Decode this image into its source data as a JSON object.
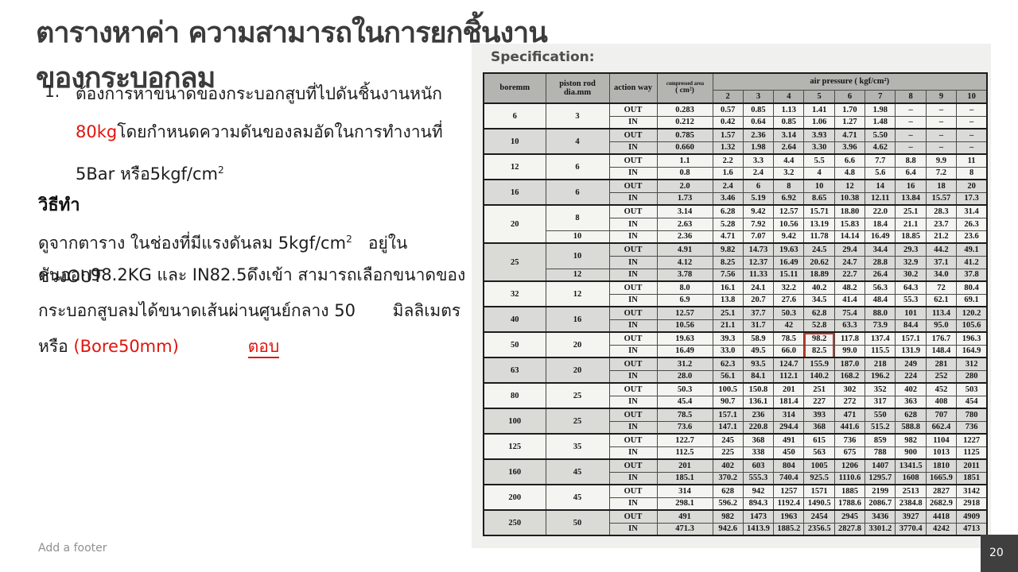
{
  "title": "ตารางหาค่า ความสามารถในการยกชิ้นงาน ของกระบอกลม",
  "problem": {
    "number": "1.",
    "lines": [
      [
        {
          "t": "ต้องการหาขนาดของกระบอกสูบที่ไปดันชิ้นงานหนัก"
        }
      ],
      [
        {
          "t": "80kg",
          "c": "red"
        },
        {
          "t": "โดยกำหนดความดันของลมอัดในการทำงานที่"
        }
      ],
      [
        {
          "t": "5Bar หรือ5kgf/cm"
        },
        {
          "t": "2",
          "sup": true
        }
      ]
    ]
  },
  "method": {
    "heading": "วิธีทำ",
    "lines": [
      [
        {
          "t": "ดูจากตาราง ในช่องที่มีแรงดันลม 5kgf/cm"
        },
        {
          "t": "2",
          "sup": true
        },
        {
          "t": "   อยู่ในช่วงOUT"
        }
      ],
      [
        {
          "t": "ดันออก98.2KG และ IN82.5ดึงเข้า สามารถเลือกขนาดของ"
        }
      ],
      [
        {
          "t": "กระบอกสูบลมได้ขนาดเส้นผ่านศูนย์กลาง 50       มิลลิเมตร"
        }
      ],
      [
        {
          "t": "หรือ "
        },
        {
          "t": "(Bore50mm)",
          "c": "red"
        },
        {
          "t": "             "
        },
        {
          "t": "ตอบ",
          "c": "red",
          "u": true
        }
      ]
    ]
  },
  "spec": {
    "title": "Specification:"
  },
  "table": {
    "headers": {
      "bore": "boremm",
      "rod": "piston rod dia.mm",
      "action": "action way",
      "area_line1": "compressed area",
      "area_line2": "( cm²)",
      "pressure": "air pressure ( kgf/cm²)",
      "pressure_cols": [
        "2",
        "3",
        "4",
        "5",
        "6",
        "7",
        "8",
        "9",
        "10"
      ]
    },
    "highlight_col": 3,
    "groups": [
      {
        "bore": "6",
        "shaded": false,
        "rows": [
          {
            "rod": "3",
            "rodspan": 2,
            "action": "OUT",
            "area": "0.283",
            "values": [
              "0.57",
              "0.85",
              "1.13",
              "1.41",
              "1.70",
              "1.98",
              "–",
              "–",
              "–"
            ]
          },
          {
            "action": "IN",
            "area": "0.212",
            "values": [
              "0.42",
              "0.64",
              "0.85",
              "1.06",
              "1.27",
              "1.48",
              "–",
              "–",
              "–"
            ]
          }
        ]
      },
      {
        "bore": "10",
        "shaded": true,
        "rows": [
          {
            "rod": "4",
            "rodspan": 2,
            "action": "OUT",
            "area": "0.785",
            "values": [
              "1.57",
              "2.36",
              "3.14",
              "3.93",
              "4.71",
              "5.50",
              "–",
              "–",
              "–"
            ]
          },
          {
            "action": "IN",
            "area": "0.660",
            "values": [
              "1.32",
              "1.98",
              "2.64",
              "3.30",
              "3.96",
              "4.62",
              "–",
              "–",
              "–"
            ]
          }
        ]
      },
      {
        "bore": "12",
        "shaded": false,
        "rows": [
          {
            "rod": "6",
            "rodspan": 2,
            "action": "OUT",
            "area": "1.1",
            "values": [
              "2.2",
              "3.3",
              "4.4",
              "5.5",
              "6.6",
              "7.7",
              "8.8",
              "9.9",
              "11"
            ]
          },
          {
            "action": "IN",
            "area": "0.8",
            "values": [
              "1.6",
              "2.4",
              "3.2",
              "4",
              "4.8",
              "5.6",
              "6.4",
              "7.2",
              "8"
            ]
          }
        ]
      },
      {
        "bore": "16",
        "shaded": true,
        "rows": [
          {
            "rod": "6",
            "rodspan": 2,
            "action": "OUT",
            "area": "2.0",
            "values": [
              "2.4",
              "6",
              "8",
              "10",
              "12",
              "14",
              "16",
              "18",
              "20"
            ]
          },
          {
            "action": "IN",
            "area": "1.73",
            "values": [
              "3.46",
              "5.19",
              "6.92",
              "8.65",
              "10.38",
              "12.11",
              "13.84",
              "15.57",
              "17.3"
            ]
          }
        ]
      },
      {
        "bore": "20",
        "shaded": false,
        "rows": [
          {
            "rod": "8",
            "rodspan": 2,
            "action": "OUT",
            "area": "3.14",
            "values": [
              "6.28",
              "9.42",
              "12.57",
              "15.71",
              "18.80",
              "22.0",
              "25.1",
              "28.3",
              "31.4"
            ]
          },
          {
            "action": "IN",
            "area": "2.63",
            "values": [
              "5.28",
              "7.92",
              "10.56",
              "13.19",
              "15.83",
              "18.4",
              "21.1",
              "23.7",
              "26.3"
            ]
          },
          {
            "rod": "10",
            "rodspan": 1,
            "action": "IN",
            "area": "2.36",
            "values": [
              "4.71",
              "7.07",
              "9.42",
              "11.78",
              "14.14",
              "16.49",
              "18.85",
              "21.2",
              "23.6"
            ]
          }
        ]
      },
      {
        "bore": "25",
        "shaded": true,
        "rows": [
          {
            "rod": "10",
            "rodspan": 2,
            "action": "OUT",
            "area": "4.91",
            "values": [
              "9.82",
              "14.73",
              "19.63",
              "24.5",
              "29.4",
              "34.4",
              "29.3",
              "44.2",
              "49.1"
            ]
          },
          {
            "action": "IN",
            "area": "4.12",
            "values": [
              "8.25",
              "12.37",
              "16.49",
              "20.62",
              "24.7",
              "28.8",
              "32.9",
              "37.1",
              "41.2"
            ]
          },
          {
            "rod": "12",
            "rodspan": 1,
            "action": "IN",
            "area": "3.78",
            "values": [
              "7.56",
              "11.33",
              "15.11",
              "18.89",
              "22.7",
              "26.4",
              "30.2",
              "34.0",
              "37.8"
            ]
          }
        ]
      },
      {
        "bore": "32",
        "shaded": false,
        "rows": [
          {
            "rod": "12",
            "rodspan": 2,
            "action": "OUT",
            "area": "8.0",
            "values": [
              "16.1",
              "24.1",
              "32.2",
              "40.2",
              "48.2",
              "56.3",
              "64.3",
              "72",
              "80.4"
            ]
          },
          {
            "action": "IN",
            "area": "6.9",
            "values": [
              "13.8",
              "20.7",
              "27.6",
              "34.5",
              "41.4",
              "48.4",
              "55.3",
              "62.1",
              "69.1"
            ]
          }
        ]
      },
      {
        "bore": "40",
        "shaded": true,
        "rows": [
          {
            "rod": "16",
            "rodspan": 2,
            "action": "OUT",
            "area": "12.57",
            "values": [
              "25.1",
              "37.7",
              "50.3",
              "62.8",
              "75.4",
              "88.0",
              "101",
              "113.4",
              "120.2"
            ]
          },
          {
            "action": "IN",
            "area": "10.56",
            "values": [
              "21.1",
              "31.7",
              "42",
              "52.8",
              "63.3",
              "73.9",
              "84.4",
              "95.0",
              "105.6"
            ]
          }
        ]
      },
      {
        "bore": "50",
        "shaded": false,
        "rows": [
          {
            "rod": "20",
            "rodspan": 2,
            "action": "OUT",
            "area": "19.63",
            "hl": "top",
            "values": [
              "39.3",
              "58.9",
              "78.5",
              "98.2",
              "117.8",
              "137.4",
              "157.1",
              "176.7",
              "196.3"
            ]
          },
          {
            "action": "IN",
            "area": "16.49",
            "hl": "bottom",
            "values": [
              "33.0",
              "49.5",
              "66.0",
              "82.5",
              "99.0",
              "115.5",
              "131.9",
              "148.4",
              "164.9"
            ]
          }
        ]
      },
      {
        "bore": "63",
        "shaded": true,
        "rows": [
          {
            "rod": "20",
            "rodspan": 2,
            "action": "OUT",
            "area": "31.2",
            "values": [
              "62.3",
              "93.5",
              "124.7",
              "155.9",
              "187.0",
              "218",
              "249",
              "281",
              "312"
            ]
          },
          {
            "action": "IN",
            "area": "28.0",
            "values": [
              "56.1",
              "84.1",
              "112.1",
              "140.2",
              "168.2",
              "196.2",
              "224",
              "252",
              "280"
            ]
          }
        ]
      },
      {
        "bore": "80",
        "shaded": false,
        "rows": [
          {
            "rod": "25",
            "rodspan": 2,
            "action": "OUT",
            "area": "50.3",
            "values": [
              "100.5",
              "150.8",
              "201",
              "251",
              "302",
              "352",
              "402",
              "452",
              "503"
            ]
          },
          {
            "action": "IN",
            "area": "45.4",
            "values": [
              "90.7",
              "136.1",
              "181.4",
              "227",
              "272",
              "317",
              "363",
              "408",
              "454"
            ]
          }
        ]
      },
      {
        "bore": "100",
        "shaded": true,
        "rows": [
          {
            "rod": "25",
            "rodspan": 2,
            "action": "OUT",
            "area": "78.5",
            "values": [
              "157.1",
              "236",
              "314",
              "393",
              "471",
              "550",
              "628",
              "707",
              "780"
            ]
          },
          {
            "action": "IN",
            "area": "73.6",
            "values": [
              "147.1",
              "220.8",
              "294.4",
              "368",
              "441.6",
              "515.2",
              "588.8",
              "662.4",
              "736"
            ]
          }
        ]
      },
      {
        "bore": "125",
        "shaded": false,
        "rows": [
          {
            "rod": "35",
            "rodspan": 2,
            "action": "OUT",
            "area": "122.7",
            "values": [
              "245",
              "368",
              "491",
              "615",
              "736",
              "859",
              "982",
              "1104",
              "1227"
            ]
          },
          {
            "action": "IN",
            "area": "112.5",
            "values": [
              "225",
              "338",
              "450",
              "563",
              "675",
              "788",
              "900",
              "1013",
              "1125"
            ]
          }
        ]
      },
      {
        "bore": "160",
        "shaded": true,
        "rows": [
          {
            "rod": "45",
            "rodspan": 2,
            "action": "OUT",
            "area": "201",
            "values": [
              "402",
              "603",
              "804",
              "1005",
              "1206",
              "1407",
              "1341.5",
              "1810",
              "2011"
            ]
          },
          {
            "action": "IN",
            "area": "185.1",
            "values": [
              "370.2",
              "555.3",
              "740.4",
              "925.5",
              "1110.6",
              "1295.7",
              "1608",
              "1665.9",
              "1851"
            ]
          }
        ]
      },
      {
        "bore": "200",
        "shaded": false,
        "rows": [
          {
            "rod": "45",
            "rodspan": 2,
            "action": "OUT",
            "area": "314",
            "values": [
              "628",
              "942",
              "1257",
              "1571",
              "1885",
              "2199",
              "2513",
              "2827",
              "3142"
            ]
          },
          {
            "action": "IN",
            "area": "298.1",
            "values": [
              "596.2",
              "894.3",
              "1192.4",
              "1490.5",
              "1788.6",
              "2086.7",
              "2384.8",
              "2682.9",
              "2918"
            ]
          }
        ]
      },
      {
        "bore": "250",
        "shaded": true,
        "rows": [
          {
            "rod": "50",
            "rodspan": 2,
            "action": "OUT",
            "area": "491",
            "values": [
              "982",
              "1473",
              "1963",
              "2454",
              "2945",
              "3436",
              "3927",
              "4418",
              "4909"
            ]
          },
          {
            "action": "IN",
            "area": "471.3",
            "values": [
              "942.6",
              "1413.9",
              "1885.2",
              "2356.5",
              "2827.8",
              "3301.2",
              "3770.4",
              "4242",
              "4713"
            ]
          }
        ]
      }
    ]
  },
  "footer": {
    "placeholder": "Add a footer",
    "page_number": "20"
  }
}
